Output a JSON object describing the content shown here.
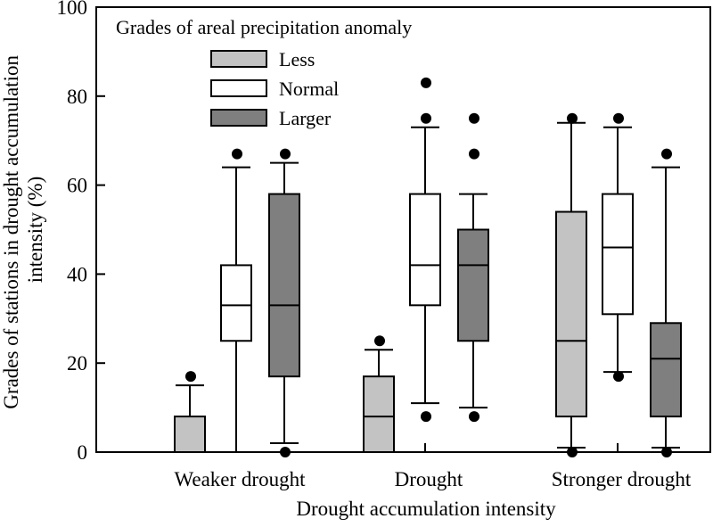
{
  "chart_data": {
    "type": "box",
    "xlabel": "Drought accumulation intensity",
    "ylabel_lines": [
      "Grades of stations in drought accumulation",
      "intensity (%)"
    ],
    "ylim": [
      0,
      100
    ],
    "yticks": [
      "0",
      "20",
      "40",
      "60",
      "80",
      "100"
    ],
    "categories": [
      "Weaker drought",
      "Drought",
      "Stronger drought"
    ],
    "legend": {
      "title": "Grades of areal precipitation anomaly",
      "position": "top-left"
    },
    "series": [
      {
        "name": "Less",
        "color": "#c3c3c3",
        "boxes": [
          {
            "whisker_low": 0,
            "q1": 0,
            "median": 0,
            "q3": 8,
            "whisker_high": 15,
            "outliers": [
              17
            ]
          },
          {
            "whisker_low": 0,
            "q1": 0,
            "median": 8,
            "q3": 17,
            "whisker_high": 23,
            "outliers": [
              25
            ]
          },
          {
            "whisker_low": 1,
            "q1": 8,
            "median": 25,
            "q3": 54,
            "whisker_high": 74,
            "outliers": [
              0,
              75
            ]
          }
        ]
      },
      {
        "name": "Normal",
        "color": "#ffffff",
        "boxes": [
          {
            "whisker_low": 0,
            "q1": 25,
            "median": 33,
            "q3": 42,
            "whisker_high": 64,
            "outliers": [
              67
            ]
          },
          {
            "whisker_low": 11,
            "q1": 33,
            "median": 42,
            "q3": 58,
            "whisker_high": 73,
            "outliers": [
              8,
              75,
              83
            ]
          },
          {
            "whisker_low": 18,
            "q1": 31,
            "median": 46,
            "q3": 58,
            "whisker_high": 73,
            "outliers": [
              17,
              75
            ]
          }
        ]
      },
      {
        "name": "Larger",
        "color": "#7f7f7f",
        "boxes": [
          {
            "whisker_low": 2,
            "q1": 17,
            "median": 33,
            "q3": 58,
            "whisker_high": 65,
            "outliers": [
              0,
              67
            ]
          },
          {
            "whisker_low": 10,
            "q1": 25,
            "median": 42,
            "q3": 50,
            "whisker_high": 58,
            "outliers": [
              8,
              67,
              75
            ]
          },
          {
            "whisker_low": 1,
            "q1": 8,
            "median": 21,
            "q3": 29,
            "whisker_high": 64,
            "outliers": [
              0,
              67
            ]
          }
        ]
      }
    ]
  }
}
